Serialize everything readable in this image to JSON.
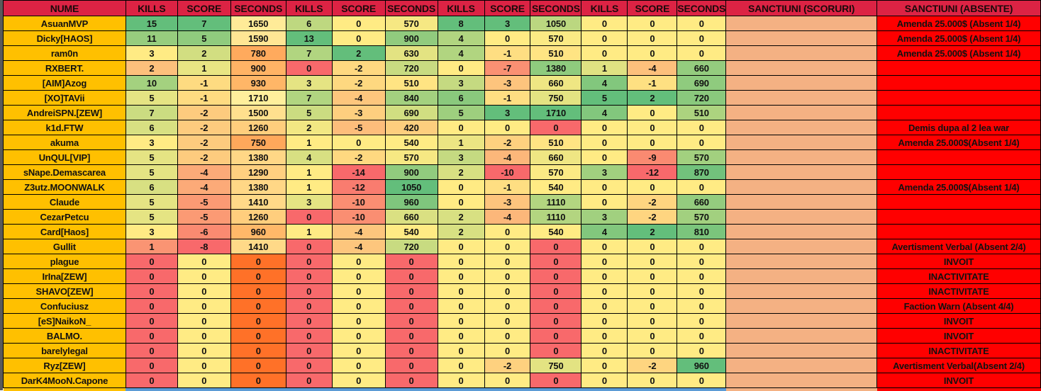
{
  "headers": [
    "NUME",
    "KILLS",
    "SCORE",
    "SECONDS",
    "KILLS",
    "SCORE",
    "SECONDS",
    "KILLS",
    "SCORE",
    "SECONDS",
    "KILLS",
    "SCORE",
    "SECONDS",
    "SANCTIUNI (SCORURI)",
    "SANCTIUNI (ABSENTE)"
  ],
  "colors": {
    "header": "#dc2344",
    "name": "#ffc000",
    "sanctiuni_scoruri": "#f4b183",
    "sanctiuni_absente": "#ff0000",
    "scale_min": "#f8696b",
    "scale_mid": "#ffeb84",
    "scale_max": "#63be7b",
    "seconds1_min": "#ff7128",
    "seconds1_max": "#ffef9c"
  },
  "rows": [
    {
      "name": "AsuanMVP",
      "v": [
        15,
        7,
        1650,
        6,
        0,
        570,
        8,
        3,
        1050,
        0,
        0,
        0
      ],
      "ss": "",
      "sa": "Amenda 25.000$ (Absent 1/4)"
    },
    {
      "name": "Dicky[HAOS]",
      "v": [
        11,
        5,
        1590,
        13,
        0,
        900,
        4,
        0,
        570,
        0,
        0,
        0
      ],
      "ss": "",
      "sa": "Amenda 25.000$ (Absent 1/4)"
    },
    {
      "name": "ram0n",
      "v": [
        3,
        2,
        780,
        7,
        2,
        630,
        4,
        -1,
        510,
        0,
        0,
        0
      ],
      "ss": "",
      "sa": "Amenda 25.000$ (Absent 1/4)"
    },
    {
      "name": "RXBERT.",
      "v": [
        2,
        1,
        900,
        0,
        -2,
        720,
        0,
        -7,
        1380,
        1,
        -4,
        660
      ],
      "ss": "",
      "sa": ""
    },
    {
      "name": "[AIM]Azog",
      "v": [
        10,
        -1,
        930,
        3,
        -2,
        510,
        3,
        -3,
        660,
        4,
        -1,
        690
      ],
      "ss": "",
      "sa": ""
    },
    {
      "name": "[XO]TAVii",
      "v": [
        5,
        -1,
        1710,
        7,
        -4,
        840,
        6,
        -1,
        750,
        5,
        2,
        720
      ],
      "ss": "",
      "sa": ""
    },
    {
      "name": "AndreiSPN.[ZEW]",
      "v": [
        7,
        -2,
        1500,
        5,
        -3,
        690,
        5,
        3,
        1710,
        4,
        0,
        510
      ],
      "ss": "",
      "sa": ""
    },
    {
      "name": "k1d.FTW",
      "v": [
        6,
        -2,
        1260,
        2,
        -5,
        420,
        0,
        0,
        0,
        0,
        0,
        0
      ],
      "ss": "",
      "sa": "Demis dupa al 2 lea war"
    },
    {
      "name": "akuma",
      "v": [
        3,
        -2,
        750,
        1,
        0,
        540,
        1,
        -2,
        510,
        0,
        0,
        0
      ],
      "ss": "",
      "sa": "Amenda 25.000$(Absent 1/4)"
    },
    {
      "name": "UnQUL[VIP]",
      "v": [
        5,
        -2,
        1380,
        4,
        -2,
        570,
        3,
        -4,
        660,
        0,
        -9,
        570
      ],
      "ss": "",
      "sa": ""
    },
    {
      "name": "sNape.Demascarea",
      "v": [
        5,
        -4,
        1290,
        1,
        -14,
        900,
        2,
        -10,
        570,
        3,
        -12,
        870
      ],
      "ss": "",
      "sa": ""
    },
    {
      "name": "Z3utz.MOONWALK",
      "v": [
        6,
        -4,
        1380,
        1,
        -12,
        1050,
        0,
        -1,
        540,
        0,
        0,
        0
      ],
      "ss": "",
      "sa": "Amenda 25.000$(Absent 1/4)"
    },
    {
      "name": "Claude",
      "v": [
        5,
        -5,
        1410,
        3,
        -10,
        960,
        0,
        -3,
        1110,
        0,
        -2,
        660
      ],
      "ss": "",
      "sa": ""
    },
    {
      "name": "CezarPetcu",
      "v": [
        5,
        -5,
        1260,
        0,
        -10,
        660,
        2,
        -4,
        1110,
        3,
        -2,
        570
      ],
      "ss": "",
      "sa": ""
    },
    {
      "name": "Card[Haos]",
      "v": [
        3,
        -6,
        960,
        1,
        -4,
        540,
        2,
        0,
        540,
        4,
        2,
        810
      ],
      "ss": "",
      "sa": ""
    },
    {
      "name": "Gullit",
      "v": [
        1,
        -8,
        1410,
        0,
        -4,
        720,
        0,
        0,
        0,
        0,
        0,
        0
      ],
      "ss": "",
      "sa": "Avertisment Verbal (Absent 2/4)"
    },
    {
      "name": "plague",
      "v": [
        0,
        0,
        0,
        0,
        0,
        0,
        0,
        0,
        0,
        0,
        0,
        0
      ],
      "ss": "",
      "sa": "INVOIT"
    },
    {
      "name": "IrIna[ZEW]",
      "v": [
        0,
        0,
        0,
        0,
        0,
        0,
        0,
        0,
        0,
        0,
        0,
        0
      ],
      "ss": "",
      "sa": "INACTIVITATE"
    },
    {
      "name": "SHAVO[ZEW]",
      "v": [
        0,
        0,
        0,
        0,
        0,
        0,
        0,
        0,
        0,
        0,
        0,
        0
      ],
      "ss": "",
      "sa": "INACTIVITATE"
    },
    {
      "name": "Confuciusz",
      "v": [
        0,
        0,
        0,
        0,
        0,
        0,
        0,
        0,
        0,
        0,
        0,
        0
      ],
      "ss": "",
      "sa": "Faction Warn (Absent 4/4)"
    },
    {
      "name": "[eS]NaikoN_",
      "v": [
        0,
        0,
        0,
        0,
        0,
        0,
        0,
        0,
        0,
        0,
        0,
        0
      ],
      "ss": "",
      "sa": "INVOIT"
    },
    {
      "name": "BALMO.",
      "v": [
        0,
        0,
        0,
        0,
        0,
        0,
        0,
        0,
        0,
        0,
        0,
        0
      ],
      "ss": "",
      "sa": "INVOIT"
    },
    {
      "name": "barelylegal",
      "v": [
        0,
        0,
        0,
        0,
        0,
        0,
        0,
        0,
        0,
        0,
        0,
        0
      ],
      "ss": "",
      "sa": "INACTIVITATE"
    },
    {
      "name": "Ryz[ZEW]",
      "v": [
        0,
        0,
        0,
        0,
        0,
        0,
        0,
        -2,
        750,
        0,
        -2,
        960
      ],
      "ss": "",
      "sa": "Avertisment Verbal(Absent 2/4)"
    },
    {
      "name": "DarK4MooN.Capone",
      "v": [
        0,
        0,
        0,
        0,
        0,
        0,
        0,
        0,
        0,
        0,
        0,
        0
      ],
      "ss": "",
      "sa": "INVOIT"
    }
  ]
}
